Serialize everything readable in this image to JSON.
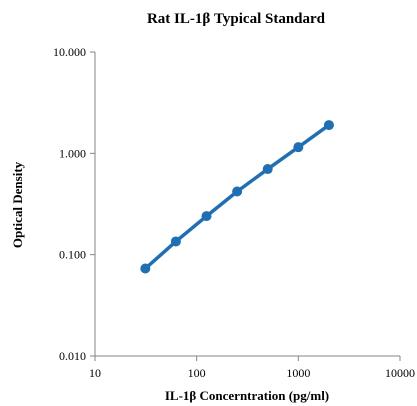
{
  "chart_data": {
    "type": "scatter",
    "title": "Rat IL-1β Typical Standard",
    "xlabel": "IL-1β Concerntration (pg/ml)",
    "ylabel": "Optical Density",
    "x_scale": "log",
    "y_scale": "log",
    "xlim": [
      10,
      10000
    ],
    "ylim": [
      0.01,
      10
    ],
    "x_ticks": [
      "10",
      "100",
      "1000",
      "10000"
    ],
    "y_ticks": [
      "10.000",
      "1.000",
      "0.100",
      "0.010"
    ],
    "grid": false,
    "legend": "none",
    "series": [
      {
        "x": [
          31.25,
          62.5,
          125,
          250,
          500,
          1000,
          2000
        ],
        "y": [
          0.073,
          0.135,
          0.24,
          0.42,
          0.7,
          1.15,
          1.9
        ],
        "color": "#1f6fb2",
        "marker": "circle",
        "connect": "line"
      }
    ]
  }
}
